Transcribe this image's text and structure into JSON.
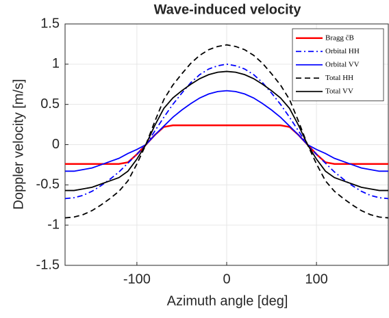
{
  "chart_data": {
    "type": "line",
    "title": "Wave-induced velocity",
    "xlabel": "Azimuth angle [deg]",
    "ylabel": "Doppler velocity [m/s]",
    "x": [
      -180,
      -170,
      -160,
      -150,
      -140,
      -130,
      -120,
      -110,
      -100,
      -90,
      -80,
      -70,
      -60,
      -50,
      -40,
      -30,
      -20,
      -10,
      0,
      10,
      20,
      30,
      40,
      50,
      60,
      70,
      80,
      90,
      100,
      110,
      120,
      130,
      140,
      150,
      160,
      170,
      180
    ],
    "series": [
      {
        "name": "Bragg c̄B",
        "color": "#ff0000",
        "dash": "solid",
        "width": 2.5,
        "values": [
          -0.24,
          -0.24,
          -0.24,
          -0.24,
          -0.24,
          -0.24,
          -0.24,
          -0.22,
          -0.12,
          0,
          0.12,
          0.22,
          0.24,
          0.24,
          0.24,
          0.24,
          0.24,
          0.24,
          0.24,
          0.24,
          0.24,
          0.24,
          0.24,
          0.24,
          0.24,
          0.22,
          0.12,
          0,
          -0.12,
          -0.22,
          -0.24,
          -0.24,
          -0.24,
          -0.24,
          -0.24,
          -0.24,
          -0.24
        ]
      },
      {
        "name": "Orbital HH",
        "color": "#0000ff",
        "dash": "dashdot",
        "width": 1.8,
        "values": [
          -0.67,
          -0.66,
          -0.63,
          -0.58,
          -0.51,
          -0.43,
          -0.34,
          -0.23,
          -0.12,
          0,
          0.17,
          0.34,
          0.5,
          0.64,
          0.77,
          0.87,
          0.94,
          0.98,
          1,
          0.98,
          0.94,
          0.87,
          0.77,
          0.64,
          0.5,
          0.34,
          0.17,
          0,
          -0.12,
          -0.23,
          -0.34,
          -0.43,
          -0.51,
          -0.58,
          -0.63,
          -0.66,
          -0.67
        ]
      },
      {
        "name": "Orbital VV",
        "color": "#0000ff",
        "dash": "solid",
        "width": 1.8,
        "values": [
          -0.33,
          -0.33,
          -0.31,
          -0.29,
          -0.25,
          -0.21,
          -0.17,
          -0.11,
          -0.06,
          0,
          0.12,
          0.23,
          0.34,
          0.43,
          0.51,
          0.58,
          0.63,
          0.66,
          0.67,
          0.66,
          0.63,
          0.58,
          0.51,
          0.43,
          0.34,
          0.23,
          0.12,
          0,
          -0.06,
          -0.11,
          -0.17,
          -0.21,
          -0.25,
          -0.29,
          -0.31,
          -0.33,
          -0.33
        ]
      },
      {
        "name": "Total HH",
        "color": "#000000",
        "dash": "dashed",
        "width": 1.8,
        "values": [
          -0.91,
          -0.9,
          -0.87,
          -0.82,
          -0.75,
          -0.67,
          -0.58,
          -0.45,
          -0.24,
          0,
          0.29,
          0.56,
          0.74,
          0.88,
          1.01,
          1.11,
          1.18,
          1.22,
          1.24,
          1.22,
          1.18,
          1.11,
          1.01,
          0.88,
          0.74,
          0.56,
          0.29,
          0,
          -0.24,
          -0.45,
          -0.58,
          -0.67,
          -0.75,
          -0.82,
          -0.87,
          -0.9,
          -0.91
        ]
      },
      {
        "name": "Total VV",
        "color": "#000000",
        "dash": "solid",
        "width": 1.8,
        "values": [
          -0.57,
          -0.57,
          -0.55,
          -0.53,
          -0.49,
          -0.45,
          -0.41,
          -0.33,
          -0.18,
          0,
          0.24,
          0.45,
          0.58,
          0.67,
          0.75,
          0.82,
          0.87,
          0.9,
          0.91,
          0.9,
          0.87,
          0.82,
          0.75,
          0.67,
          0.58,
          0.45,
          0.24,
          0,
          -0.18,
          -0.33,
          -0.41,
          -0.45,
          -0.49,
          -0.53,
          -0.55,
          -0.57,
          -0.57
        ]
      }
    ],
    "xlim": [
      -180,
      180
    ],
    "xticks": [
      -100,
      0,
      100
    ],
    "ylim": [
      -1.5,
      1.5
    ],
    "yticks": [
      -1.5,
      -1,
      -0.5,
      0,
      0.5,
      1,
      1.5
    ],
    "grid": true,
    "legend": "top-right"
  }
}
